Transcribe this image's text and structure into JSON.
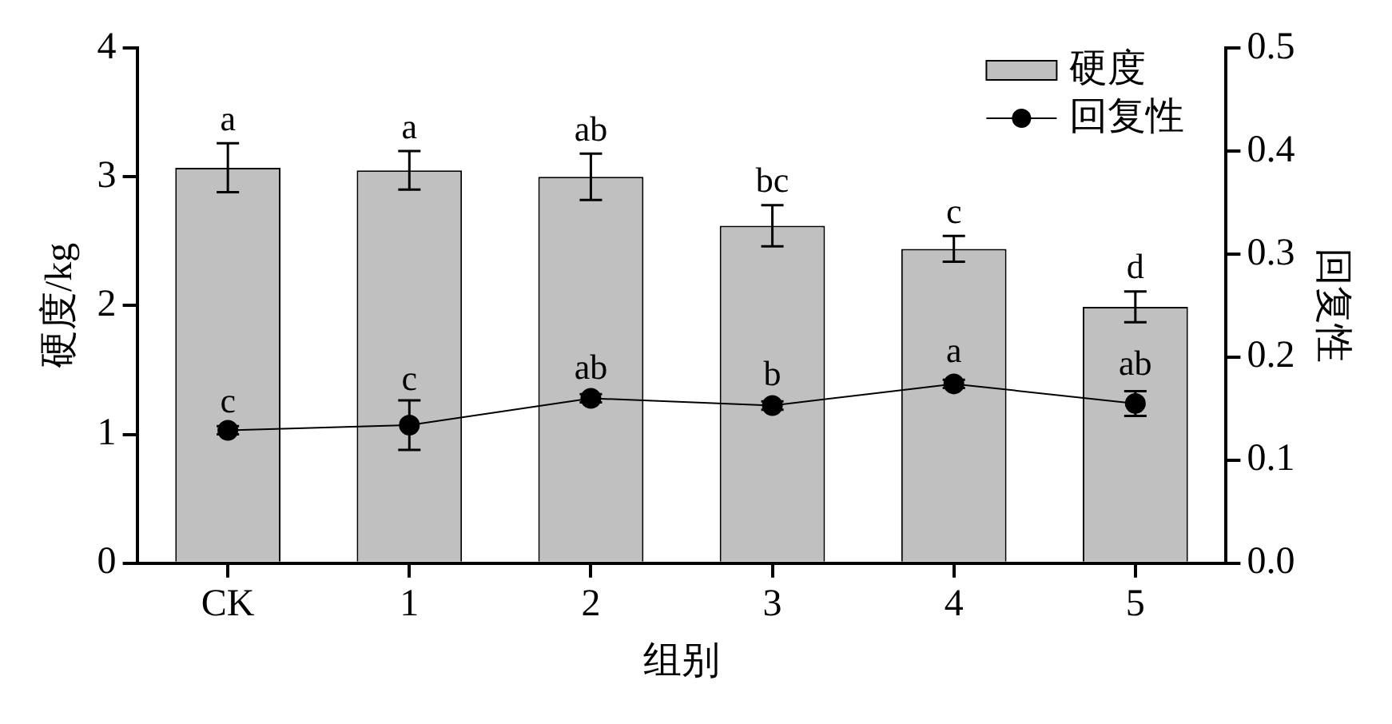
{
  "chart_data": {
    "type": "bar",
    "xlabel": "组别",
    "ylabel": "硬度/kg",
    "y2label": "回复性",
    "categories": [
      "CK",
      "1",
      "2",
      "3",
      "4",
      "5"
    ],
    "series": [
      {
        "name": "硬度",
        "color": "#c0c0c0",
        "values": [
          3.07,
          3.05,
          3.0,
          2.62,
          2.44,
          1.99
        ],
        "errors": [
          0.19,
          0.15,
          0.18,
          0.16,
          0.1,
          0.12
        ]
      },
      {
        "name": "回复性",
        "type": "line",
        "axis": "y2",
        "color": "#000000",
        "values": [
          0.129,
          0.134,
          0.16,
          0.153,
          0.174,
          0.155
        ],
        "errors": [
          0.004,
          0.024,
          0.004,
          0.004,
          0.004,
          0.012
        ]
      }
    ],
    "ylim": [
      0,
      4
    ],
    "yticks": [
      0,
      1,
      2,
      3,
      4
    ],
    "y2lim": [
      0,
      0.5
    ],
    "y2ticks": [
      {
        "value": 0,
        "label": "0.0"
      },
      {
        "value": 0.1,
        "label": "0.1"
      },
      {
        "value": 0.2,
        "label": "0.2"
      },
      {
        "value": 0.3,
        "label": "0.3"
      },
      {
        "value": 0.4,
        "label": "0.4"
      },
      {
        "value": 0.5,
        "label": "0.5"
      }
    ],
    "grid": false,
    "legend": "top right",
    "marker": "circle",
    "line_style": "solid",
    "annotations": [
      {
        "text": "a",
        "x": "CK",
        "y": 3.26
      },
      {
        "text": "a",
        "x": "1",
        "y": 3.2
      },
      {
        "text": "ab",
        "x": "2",
        "y": 3.18
      },
      {
        "text": "bc",
        "x": "3",
        "y": 2.78
      },
      {
        "text": "c",
        "x": "4",
        "y": 2.54
      },
      {
        "text": "d",
        "x": "5",
        "y": 2.11
      },
      {
        "text": "c",
        "x": "CK",
        "y": 1.07
      },
      {
        "text": "c",
        "x": "1",
        "y": 1.24
      },
      {
        "text": "ab",
        "x": "2",
        "y": 1.33
      },
      {
        "text": "b",
        "x": "3",
        "y": 1.28
      },
      {
        "text": "a",
        "x": "4",
        "y": 1.46
      },
      {
        "text": "ab",
        "x": "5",
        "y": 1.36
      }
    ]
  }
}
